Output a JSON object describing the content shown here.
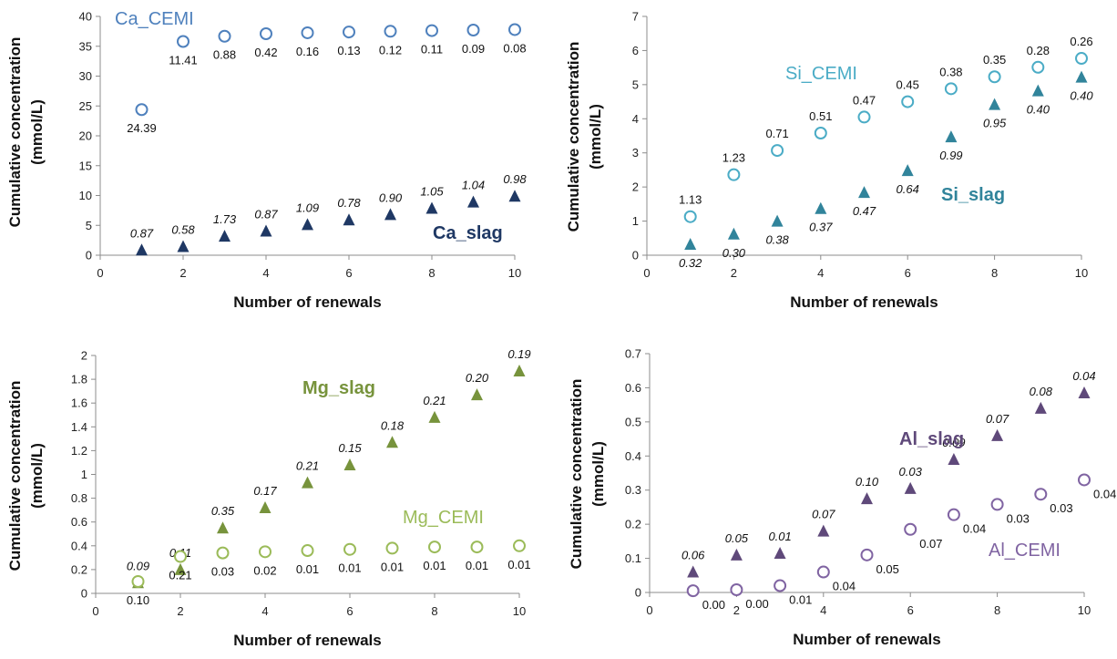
{
  "chart_data": [
    {
      "type": "scatter",
      "xlabel": "Number of renewals",
      "ylabel": [
        "Cumulative concentration",
        "(mmol/L)"
      ],
      "xlim": [
        0,
        10
      ],
      "ylim": [
        0,
        40
      ],
      "xticks": [
        "0",
        "2",
        "4",
        "6",
        "8",
        "10"
      ],
      "yticks": [
        "0",
        "5",
        "10",
        "15",
        "20",
        "25",
        "30",
        "35",
        "40"
      ],
      "grid": false,
      "series": [
        {
          "name": "Ca_CEMI",
          "marker": "circle",
          "color": "#4f81bd",
          "label_color": "#4f81bd",
          "label_bold": false,
          "x": [
            1,
            2,
            3,
            4,
            5,
            6,
            7,
            8,
            9,
            10
          ],
          "y": [
            24.39,
            35.8,
            36.68,
            37.1,
            37.26,
            37.39,
            37.51,
            37.62,
            37.71,
            37.79
          ],
          "data_labels": [
            "24.39",
            "11.41",
            "0.88",
            "0.42",
            "0.16",
            "0.13",
            "0.12",
            "0.11",
            "0.09",
            "0.08"
          ],
          "data_label_side": "below",
          "data_label_italic": false
        },
        {
          "name": "Ca_slag",
          "marker": "triangle",
          "color": "#1f3864",
          "label_color": "#1f3864",
          "label_bold": true,
          "x": [
            1,
            2,
            3,
            4,
            5,
            6,
            7,
            8,
            9,
            10
          ],
          "y": [
            0.87,
            1.45,
            3.18,
            4.05,
            5.14,
            5.92,
            6.82,
            7.87,
            8.91,
            9.89
          ],
          "data_labels": [
            "0.87",
            "0.58",
            "1.73",
            "0.87",
            "1.09",
            "0.78",
            "0.90",
            "1.05",
            "1.04",
            "0.98"
          ],
          "data_label_side": "above",
          "data_label_italic": true
        }
      ]
    },
    {
      "type": "scatter",
      "xlabel": "Number of renewals",
      "ylabel": [
        "Cumulative concentration",
        "(mmol/L)"
      ],
      "xlim": [
        0,
        10
      ],
      "ylim": [
        0,
        7
      ],
      "xticks": [
        "0",
        "2",
        "4",
        "6",
        "8",
        "10"
      ],
      "yticks": [
        "0",
        "1",
        "2",
        "3",
        "4",
        "5",
        "6",
        "7"
      ],
      "grid": false,
      "series": [
        {
          "name": "Si_CEMI",
          "marker": "circle",
          "color": "#4bacc6",
          "label_color": "#4bacc6",
          "label_bold": false,
          "x": [
            1,
            2,
            3,
            4,
            5,
            6,
            7,
            8,
            9,
            10
          ],
          "y": [
            1.13,
            2.36,
            3.07,
            3.58,
            4.05,
            4.5,
            4.88,
            5.23,
            5.51,
            5.77
          ],
          "data_labels": [
            "1.13",
            "1.23",
            "0.71",
            "0.51",
            "0.47",
            "0.45",
            "0.38",
            "0.35",
            "0.28",
            "0.26"
          ],
          "data_label_side": "above",
          "data_label_italic": false
        },
        {
          "name": "Si_slag",
          "marker": "triangle",
          "color": "#31849b",
          "label_color": "#31849b",
          "label_bold": true,
          "x": [
            1,
            2,
            3,
            4,
            5,
            6,
            7,
            8,
            9,
            10
          ],
          "y": [
            0.32,
            0.62,
            1.0,
            1.37,
            1.84,
            2.48,
            3.47,
            4.42,
            4.82,
            5.22
          ],
          "data_labels": [
            "0.32",
            "0.30",
            "0.38",
            "0.37",
            "0.47",
            "0.64",
            "0.99",
            "0.95",
            "0.40",
            "0.40"
          ],
          "data_label_side": "below",
          "data_label_italic": true
        }
      ]
    },
    {
      "type": "scatter",
      "xlabel": "Number of renewals",
      "ylabel": [
        "Cumulative concentration",
        "(mmol/L)"
      ],
      "xlim": [
        0,
        10
      ],
      "ylim": [
        0,
        2
      ],
      "xticks": [
        "0",
        "2",
        "4",
        "6",
        "8",
        "10"
      ],
      "yticks": [
        "0",
        "0.2",
        "0.4",
        "0.6",
        "0.8",
        "1",
        "1.2",
        "1.4",
        "1.6",
        "1.8",
        "2"
      ],
      "grid": false,
      "series": [
        {
          "name": "Mg_slag",
          "marker": "triangle",
          "color": "#77933c",
          "label_color": "#77933c",
          "label_bold": true,
          "x": [
            1,
            2,
            3,
            4,
            5,
            6,
            7,
            8,
            9,
            10
          ],
          "y": [
            0.09,
            0.2,
            0.55,
            0.72,
            0.93,
            1.08,
            1.27,
            1.48,
            1.67,
            1.87
          ],
          "data_labels": [
            "0.09",
            "0.11",
            "0.35",
            "0.17",
            "0.21",
            "0.15",
            "0.18",
            "0.21",
            "0.20",
            "0.19"
          ],
          "data_label_side": "above",
          "data_label_italic": true
        },
        {
          "name": "Mg_CEMI",
          "marker": "circle",
          "color": "#9bbb59",
          "label_color": "#9bbb59",
          "label_bold": false,
          "x": [
            1,
            2,
            3,
            4,
            5,
            6,
            7,
            8,
            9,
            10
          ],
          "y": [
            0.1,
            0.31,
            0.34,
            0.35,
            0.36,
            0.37,
            0.38,
            0.39,
            0.39,
            0.4
          ],
          "data_labels": [
            "0.10",
            "0.21",
            "0.03",
            "0.02",
            "0.01",
            "0.01",
            "0.01",
            "0.01",
            "0.01",
            "0.01"
          ],
          "data_label_side": "below",
          "data_label_italic": false
        }
      ]
    },
    {
      "type": "scatter",
      "xlabel": "Number of renewals",
      "ylabel": [
        "Cumulative concentration",
        "(mmol/L)"
      ],
      "xlim": [
        0,
        10
      ],
      "ylim": [
        0,
        0.7
      ],
      "xticks": [
        "0",
        "2",
        "4",
        "6",
        "8",
        "10"
      ],
      "yticks": [
        "0",
        "0.1",
        "0.2",
        "0.3",
        "0.4",
        "0.5",
        "0.6",
        "0.7"
      ],
      "grid": false,
      "series": [
        {
          "name": "Al_slag",
          "marker": "triangle",
          "color": "#5f497a",
          "label_color": "#5f497a",
          "label_bold": true,
          "x": [
            1,
            2,
            3,
            4,
            5,
            6,
            7,
            8,
            9,
            10
          ],
          "y": [
            0.06,
            0.11,
            0.115,
            0.18,
            0.275,
            0.305,
            0.39,
            0.46,
            0.54,
            0.585
          ],
          "data_labels": [
            "0.06",
            "0.05",
            "0.01",
            "0.07",
            "0.10",
            "0.03",
            "0.09",
            "0.07",
            "0.08",
            "0.04"
          ],
          "data_label_side": "above",
          "data_label_italic": true
        },
        {
          "name": "Al_CEMI",
          "marker": "circle",
          "color": "#8064a2",
          "label_color": "#8064a2",
          "label_bold": false,
          "x": [
            1,
            2,
            3,
            4,
            5,
            6,
            7,
            8,
            9,
            10
          ],
          "y": [
            0.005,
            0.008,
            0.02,
            0.06,
            0.11,
            0.185,
            0.228,
            0.258,
            0.288,
            0.33
          ],
          "data_labels": [
            "0.00",
            "0.00",
            "0.01",
            "0.04",
            "0.05",
            "0.07",
            "0.04",
            "0.03",
            "0.03",
            "0.04"
          ],
          "data_label_side": "below-right",
          "data_label_italic": false
        }
      ]
    }
  ]
}
